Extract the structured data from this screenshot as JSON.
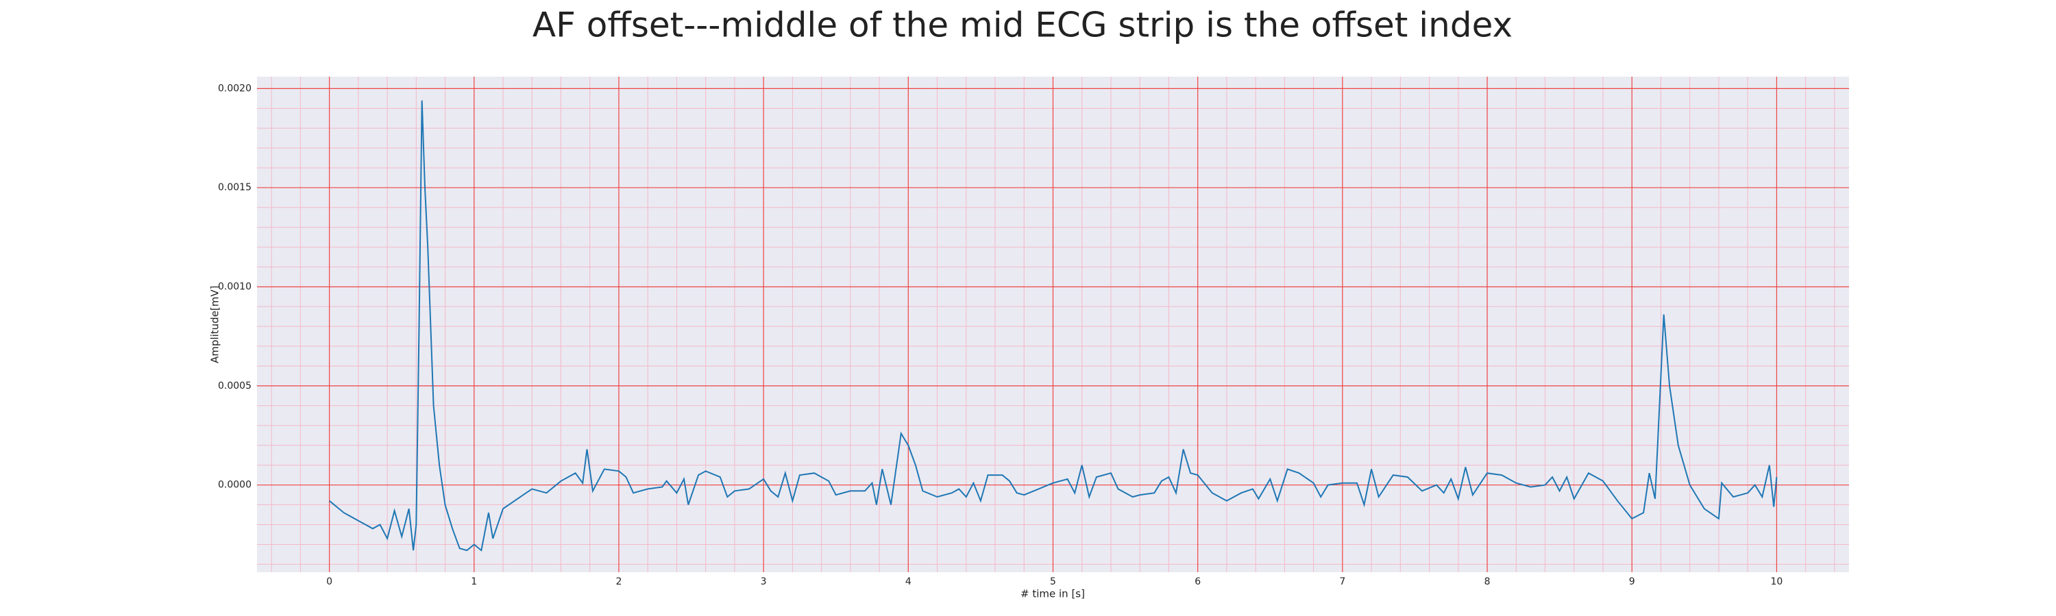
{
  "chart_data": {
    "type": "line",
    "title": "AF offset---middle of the mid ECG strip is the offset index",
    "xlabel": "# time in [s]",
    "ylabel": "Amplitude[mV]",
    "xlim": [
      -0.5,
      10.5
    ],
    "ylim": [
      -0.00044,
      0.00206
    ],
    "xticks": [
      0,
      1,
      2,
      3,
      4,
      5,
      6,
      7,
      8,
      9,
      10
    ],
    "yticks": [
      {
        "value": 0,
        "label": "0.0000"
      },
      {
        "value": 0.0005,
        "label": "0.0005"
      },
      {
        "value": 0.001,
        "label": "0.0010"
      },
      {
        "value": 0.0015,
        "label": "0.0015"
      },
      {
        "value": 0.002,
        "label": "0.0020"
      }
    ],
    "grid": true,
    "series": [
      {
        "color": "#1f77b4",
        "x": [
          0,
          0.1,
          0.2,
          0.3,
          0.35,
          0.4,
          0.45,
          0.5,
          0.55,
          0.58,
          0.6,
          0.62,
          0.64,
          0.66,
          0.68,
          0.72,
          0.76,
          0.8,
          0.85,
          0.9,
          0.95,
          1.0,
          1.05,
          1.1,
          1.13,
          1.2,
          1.3,
          1.4,
          1.5,
          1.6,
          1.7,
          1.75,
          1.78,
          1.82,
          1.9,
          2.0,
          2.05,
          2.1,
          2.2,
          2.3,
          2.33,
          2.4,
          2.45,
          2.48,
          2.55,
          2.6,
          2.7,
          2.75,
          2.8,
          2.9,
          3.0,
          3.05,
          3.1,
          3.15,
          3.2,
          3.25,
          3.35,
          3.45,
          3.5,
          3.6,
          3.7,
          3.75,
          3.78,
          3.82,
          3.88,
          3.95,
          4.0,
          4.05,
          4.1,
          4.2,
          4.3,
          4.35,
          4.4,
          4.45,
          4.5,
          4.55,
          4.65,
          4.7,
          4.75,
          4.8,
          4.9,
          5.0,
          5.1,
          5.15,
          5.2,
          5.25,
          5.3,
          5.4,
          5.45,
          5.55,
          5.6,
          5.7,
          5.75,
          5.8,
          5.85,
          5.9,
          5.95,
          6.0,
          6.1,
          6.2,
          6.3,
          6.38,
          6.42,
          6.5,
          6.55,
          6.62,
          6.7,
          6.8,
          6.85,
          6.9,
          7.0,
          7.1,
          7.15,
          7.2,
          7.25,
          7.35,
          7.45,
          7.55,
          7.65,
          7.7,
          7.75,
          7.8,
          7.85,
          7.9,
          8.0,
          8.1,
          8.2,
          8.3,
          8.4,
          8.45,
          8.5,
          8.55,
          8.6,
          8.7,
          8.8,
          8.9,
          9.0,
          9.08,
          9.12,
          9.16,
          9.22,
          9.26,
          9.32,
          9.4,
          9.5,
          9.6,
          9.62,
          9.7,
          9.8,
          9.85,
          9.9,
          9.95,
          9.98,
          10.0
        ],
        "values": [
          -8e-05,
          -0.00014,
          -0.00018,
          -0.00022,
          -0.0002,
          -0.00027,
          -0.00013,
          -0.00026,
          -0.00012,
          -0.00033,
          -0.0002,
          0.0008,
          0.00194,
          0.0015,
          0.0012,
          0.0004,
          0.0001,
          -0.0001,
          -0.00022,
          -0.00032,
          -0.00033,
          -0.0003,
          -0.00033,
          -0.00014,
          -0.00027,
          -0.00012,
          -7e-05,
          -2e-05,
          -4e-05,
          2e-05,
          6e-05,
          1e-05,
          0.00018,
          -3e-05,
          8e-05,
          7e-05,
          4e-05,
          -4e-05,
          -2e-05,
          -1e-05,
          2e-05,
          -4e-05,
          3e-05,
          -0.0001,
          5e-05,
          7e-05,
          4e-05,
          -6e-05,
          -3e-05,
          -2e-05,
          3e-05,
          -3e-05,
          -6e-05,
          6e-05,
          -8e-05,
          5e-05,
          6e-05,
          2e-05,
          -5e-05,
          -3e-05,
          -3e-05,
          1e-05,
          -0.0001,
          8e-05,
          -0.0001,
          0.00026,
          0.0002,
          0.0001,
          -3e-05,
          -6e-05,
          -4e-05,
          -2e-05,
          -6e-05,
          1e-05,
          -8e-05,
          5e-05,
          5e-05,
          2e-05,
          -4e-05,
          -5e-05,
          -2e-05,
          1e-05,
          3e-05,
          -4e-05,
          0.0001,
          -6e-05,
          4e-05,
          6e-05,
          -2e-05,
          -6e-05,
          -5e-05,
          -4e-05,
          2e-05,
          4e-05,
          -4e-05,
          0.00018,
          6e-05,
          5e-05,
          -4e-05,
          -8e-05,
          -4e-05,
          -2e-05,
          -7e-05,
          3e-05,
          -8e-05,
          8e-05,
          6e-05,
          1e-05,
          -6e-05,
          0,
          1e-05,
          1e-05,
          -0.0001,
          8e-05,
          -6e-05,
          5e-05,
          4e-05,
          -3e-05,
          0,
          -4e-05,
          3e-05,
          -7e-05,
          9e-05,
          -5e-05,
          6e-05,
          5e-05,
          1e-05,
          -1e-05,
          0,
          4e-05,
          -3e-05,
          4e-05,
          -7e-05,
          6e-05,
          2e-05,
          -8e-05,
          -0.00017,
          -0.00014,
          6e-05,
          -7e-05,
          0.00086,
          0.0005,
          0.0002,
          0,
          -0.00012,
          -0.00017,
          1e-05,
          -6e-05,
          -4e-05,
          0,
          -6e-05,
          0.0001,
          -0.00011,
          4e-05
        ]
      }
    ]
  }
}
